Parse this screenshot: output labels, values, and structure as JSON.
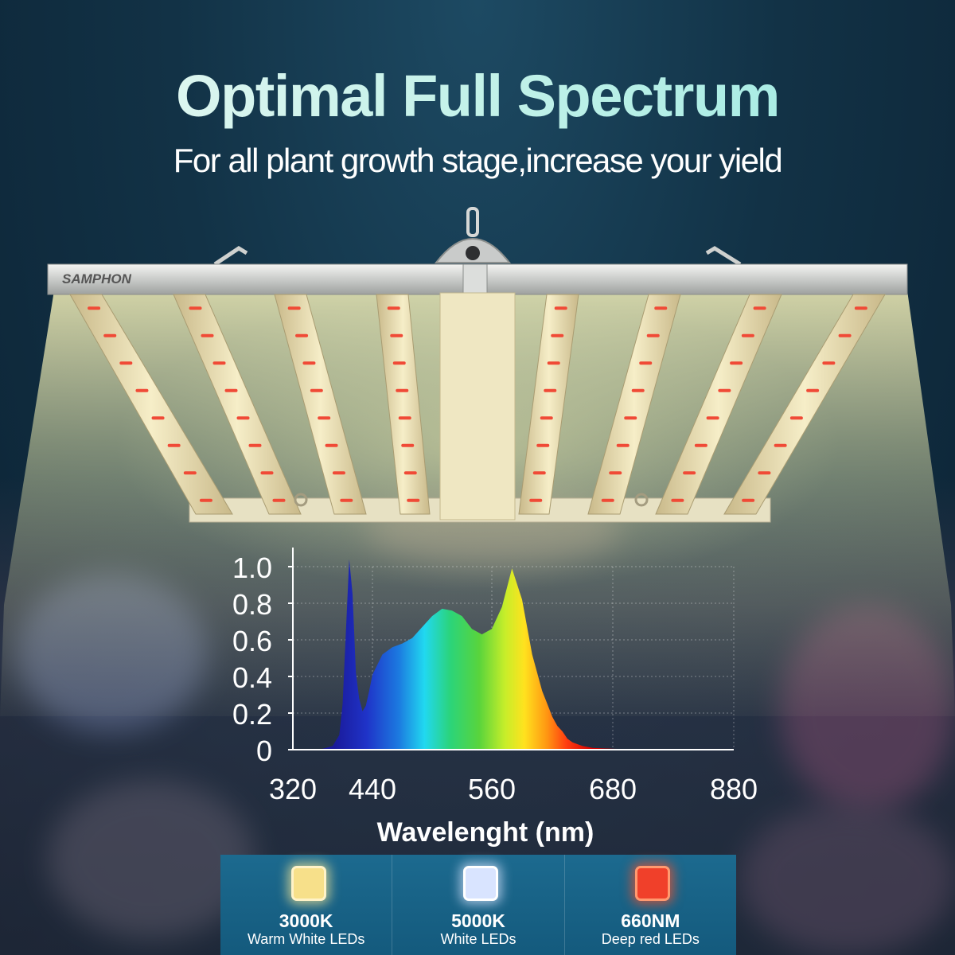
{
  "header": {
    "title": "Optimal Full Spectrum",
    "subtitle": "For all plant growth stage,increase your yield"
  },
  "lamp": {
    "brand": "SAMPHON"
  },
  "chart_data": {
    "type": "area",
    "title": "",
    "xlabel": "Wavelenght (nm)",
    "ylabel": "",
    "xlim": [
      320,
      880
    ],
    "ylim": [
      0,
      1.0
    ],
    "xticks": [
      320,
      440,
      560,
      680,
      880
    ],
    "yticks": [
      0,
      0.2,
      0.4,
      0.6,
      0.8,
      1.0
    ],
    "ytick_labels": [
      "0",
      "0.2",
      "0.4",
      "0.6",
      "0.8",
      "1.0"
    ],
    "grid": true,
    "series": [
      {
        "x": [
          360,
          380,
          390,
          395,
          400,
          405,
          410,
          415,
          420,
          425,
          430,
          435,
          440,
          450,
          460,
          470,
          480,
          490,
          500,
          510,
          520,
          530,
          540,
          550,
          560,
          570,
          580,
          590,
          600,
          610,
          615,
          620,
          625,
          630,
          635,
          640,
          645,
          650,
          660,
          680,
          700,
          720,
          740,
          760,
          780
        ],
        "y": [
          0.0,
          0.02,
          0.08,
          0.25,
          0.65,
          1.04,
          0.85,
          0.42,
          0.28,
          0.21,
          0.24,
          0.32,
          0.41,
          0.52,
          0.56,
          0.58,
          0.61,
          0.67,
          0.73,
          0.77,
          0.76,
          0.73,
          0.66,
          0.63,
          0.66,
          0.78,
          0.99,
          0.82,
          0.52,
          0.32,
          0.25,
          0.18,
          0.13,
          0.1,
          0.06,
          0.04,
          0.03,
          0.02,
          0.01,
          0.005,
          0.003,
          0.002,
          0.001,
          0.0005,
          0.0
        ]
      }
    ]
  },
  "legend": {
    "items": [
      {
        "code": "3000K",
        "desc": "Warm White LEDs",
        "color": "#f7e08a"
      },
      {
        "code": "5000K",
        "desc": "White LEDs",
        "color": "#d9e4ff"
      },
      {
        "code": "660NM",
        "desc": "Deep red LEDs",
        "color": "#f0402a"
      }
    ]
  },
  "colors": {
    "title_accent": "#bff1e8",
    "legend_bg": "#1a6688",
    "spectrum_blue": "#2233cc",
    "spectrum_red": "#d10000"
  }
}
